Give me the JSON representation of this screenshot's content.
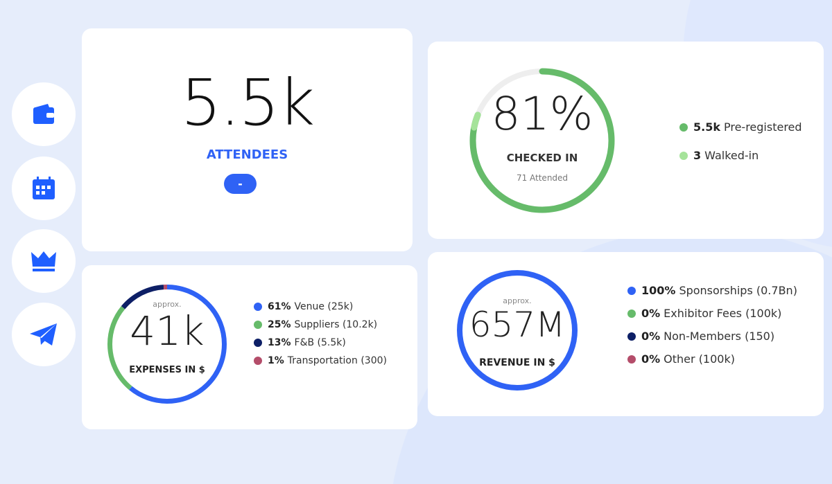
{
  "sidebar": {
    "items": [
      {
        "icon": "wallet-icon"
      },
      {
        "icon": "calendar-icon"
      },
      {
        "icon": "crown-icon"
      },
      {
        "icon": "paper-plane-icon"
      }
    ]
  },
  "attendees": {
    "value": "5.5k",
    "label": "ATTENDEES",
    "button": "-"
  },
  "checkin": {
    "percent_text": "81%",
    "percent": 81,
    "label": "CHECKED IN",
    "sub": "71 Attended",
    "legend": [
      {
        "bold": "5.5k",
        "text": "Pre-registered",
        "color": "#66bb6a"
      },
      {
        "bold": "3",
        "text": "Walked-in",
        "color": "#a5e39a"
      }
    ]
  },
  "expenses": {
    "approx": "approx.",
    "value": "41k",
    "label": "EXPENSES IN $",
    "legend": [
      {
        "pct": 61,
        "bold": "61%",
        "text": "Venue (25k)",
        "color": "#2f62f5"
      },
      {
        "pct": 25,
        "bold": "25%",
        "text": "Suppliers (10.2k)",
        "color": "#66bb6a"
      },
      {
        "pct": 13,
        "bold": "13%",
        "text": "F&B (5.5k)",
        "color": "#0d1f66"
      },
      {
        "pct": 1,
        "bold": "1%",
        "text": "Transportation (300)",
        "color": "#b44d6a"
      }
    ]
  },
  "revenue": {
    "approx": "approx.",
    "value": "657M",
    "label": "REVENUE IN $",
    "legend": [
      {
        "pct": 100,
        "bold": "100%",
        "text": "Sponsorships (0.7Bn)",
        "color": "#2f62f5"
      },
      {
        "pct": 0,
        "bold": "0%",
        "text": "Exhibitor Fees (100k)",
        "color": "#66bb6a"
      },
      {
        "pct": 0,
        "bold": "0%",
        "text": "Non-Members (150)",
        "color": "#0d1f66"
      },
      {
        "pct": 0,
        "bold": "0%",
        "text": "Other (100k)",
        "color": "#b44d6a"
      }
    ]
  },
  "colors": {
    "accent": "#2f62f5",
    "track": "#eeeeee"
  }
}
